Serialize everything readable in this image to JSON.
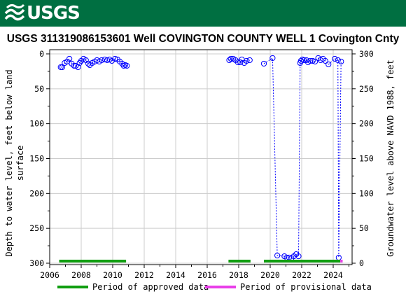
{
  "header": {
    "logo_text": "USGS",
    "logo_icon": "usgs-wave-icon"
  },
  "chart_data": {
    "type": "scatter",
    "title": "USGS 311319086153601 Well COVINGTON COUNTY WELL 1 Covington Cnty",
    "ylabel_left": [
      "Depth to water level, feet below land",
      "surface"
    ],
    "ylabel_right": "Groundwater level above NAVD 1988, feet",
    "xlim": [
      2006,
      2025.2
    ],
    "ylim_left": [
      302,
      -6
    ],
    "ylim_right": [
      -2,
      306
    ],
    "x_ticks": [
      2006,
      2008,
      2010,
      2012,
      2014,
      2016,
      2018,
      2020,
      2022,
      2024
    ],
    "y_ticks_left": [
      0,
      50,
      100,
      150,
      200,
      250,
      300
    ],
    "y_ticks_right": [
      0,
      50,
      100,
      150,
      200,
      250,
      300
    ],
    "grid": true,
    "colors": {
      "points": "#0000ff",
      "approved": "#109e10",
      "provisional": "#e83ee8",
      "grid": "#cccccc",
      "header": "#006f41"
    },
    "segments": [
      [
        [
          2006.7,
          19
        ],
        [
          2006.8,
          19
        ],
        [
          2006.95,
          13
        ],
        [
          2007.1,
          11
        ],
        [
          2007.25,
          7
        ],
        [
          2007.4,
          14
        ],
        [
          2007.55,
          17
        ],
        [
          2007.65,
          17
        ],
        [
          2007.8,
          19
        ],
        [
          2007.9,
          13
        ],
        [
          2008.0,
          10
        ],
        [
          2008.15,
          7
        ],
        [
          2008.3,
          9
        ],
        [
          2008.45,
          14
        ],
        [
          2008.55,
          16
        ],
        [
          2008.7,
          13
        ],
        [
          2008.85,
          11
        ],
        [
          2009.0,
          9
        ],
        [
          2009.15,
          11
        ],
        [
          2009.3,
          9
        ],
        [
          2009.5,
          8
        ],
        [
          2009.65,
          9
        ],
        [
          2009.8,
          8
        ],
        [
          2009.95,
          10
        ],
        [
          2010.15,
          7
        ],
        [
          2010.3,
          8
        ],
        [
          2010.45,
          11
        ],
        [
          2010.6,
          14
        ],
        [
          2010.7,
          17
        ],
        [
          2010.8,
          16
        ],
        [
          2010.9,
          17
        ]
      ],
      [
        [
          2017.4,
          9
        ],
        [
          2017.5,
          7
        ],
        [
          2017.65,
          7
        ],
        [
          2017.8,
          9
        ],
        [
          2017.95,
          12
        ],
        [
          2018.1,
          12
        ],
        [
          2018.2,
          8
        ],
        [
          2018.35,
          13
        ],
        [
          2018.5,
          10
        ],
        [
          2018.7,
          9
        ]
      ],
      [
        [
          2019.6,
          14
        ],
        [
          2020.15,
          6
        ],
        [
          2020.45,
          289
        ],
        [
          2020.9,
          290
        ],
        [
          2021.05,
          292
        ],
        [
          2021.2,
          292
        ],
        [
          2021.35,
          293
        ],
        [
          2021.5,
          290
        ],
        [
          2021.65,
          287
        ],
        [
          2021.8,
          290
        ],
        [
          2021.9,
          13
        ],
        [
          2021.95,
          10
        ],
        [
          2022.05,
          8
        ],
        [
          2022.15,
          9
        ],
        [
          2022.3,
          9
        ],
        [
          2022.4,
          12
        ],
        [
          2022.55,
          10
        ],
        [
          2022.7,
          10
        ],
        [
          2022.85,
          11
        ],
        [
          2023.05,
          6
        ],
        [
          2023.2,
          9
        ],
        [
          2023.35,
          7
        ],
        [
          2023.5,
          10
        ],
        [
          2023.7,
          15
        ],
        [
          2024.1,
          7
        ],
        [
          2024.3,
          9
        ],
        [
          2024.35,
          292
        ],
        [
          2024.5,
          11
        ]
      ]
    ],
    "approved_periods": [
      [
        2006.6,
        2010.85
      ],
      [
        2017.35,
        2018.75
      ],
      [
        2019.6,
        2024.45
      ]
    ],
    "provisional_periods": [
      [
        2024.45,
        2024.6
      ]
    ],
    "legend": {
      "approved": "Period of approved data",
      "provisional": "Period of provisional data"
    }
  }
}
